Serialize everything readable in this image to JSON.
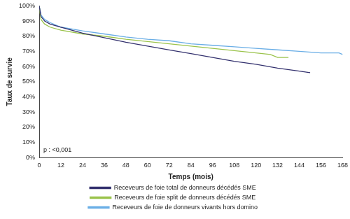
{
  "chart_data": {
    "type": "line",
    "x_label": "Temps (mois)",
    "y_label": "Taux de survie",
    "annotation": "p : <0,001",
    "legend": "bottom",
    "grid": false,
    "xlim": [
      0,
      168
    ],
    "xticks": [
      0,
      12,
      24,
      36,
      48,
      60,
      72,
      84,
      96,
      108,
      120,
      132,
      144,
      156,
      168
    ],
    "ylim": [
      0,
      100
    ],
    "yticks": [
      {
        "value": 0,
        "label": "0%"
      },
      {
        "value": 10,
        "label": "10%"
      },
      {
        "value": 20,
        "label": "20%"
      },
      {
        "value": 30,
        "label": "30%"
      },
      {
        "value": 40,
        "label": "40%"
      },
      {
        "value": 50,
        "label": "50%"
      },
      {
        "value": 60,
        "label": "60%"
      },
      {
        "value": 70,
        "label": "70%"
      },
      {
        "value": 80,
        "label": "80%"
      },
      {
        "value": 90,
        "label": "90%"
      },
      {
        "value": 100,
        "label": "100%"
      }
    ],
    "series": [
      {
        "name": "Receveurs de foie total de donneurs décédés SME",
        "color": "#33316e",
        "x": [
          0,
          1,
          3,
          6,
          12,
          24,
          36,
          48,
          60,
          72,
          84,
          96,
          108,
          120,
          132,
          144,
          150
        ],
        "values": [
          100,
          93,
          90,
          88,
          86,
          82,
          79,
          76,
          73.5,
          71,
          68.5,
          66,
          63.5,
          61.5,
          59,
          57,
          56
        ]
      },
      {
        "name": "Receveurs de foie split de donneurs décédés SME",
        "color": "#9bc34c",
        "x": [
          0,
          1,
          3,
          6,
          12,
          24,
          36,
          48,
          60,
          72,
          84,
          96,
          108,
          120,
          128,
          132,
          138
        ],
        "values": [
          100,
          91,
          88,
          86,
          84,
          81.5,
          80,
          78,
          76.5,
          75,
          73.5,
          72,
          70.5,
          69,
          68,
          66,
          66
        ]
      },
      {
        "name": "Receveurs de foie de donneurs vivants hors domino",
        "color": "#6aaee6",
        "x": [
          0,
          1,
          3,
          6,
          12,
          24,
          36,
          48,
          60,
          72,
          84,
          96,
          108,
          120,
          132,
          144,
          156,
          166,
          168
        ],
        "values": [
          100,
          94,
          91,
          89,
          86,
          83.5,
          81.5,
          79.5,
          78,
          77,
          75,
          74,
          73,
          72,
          71,
          70,
          69,
          69,
          68
        ]
      }
    ]
  }
}
